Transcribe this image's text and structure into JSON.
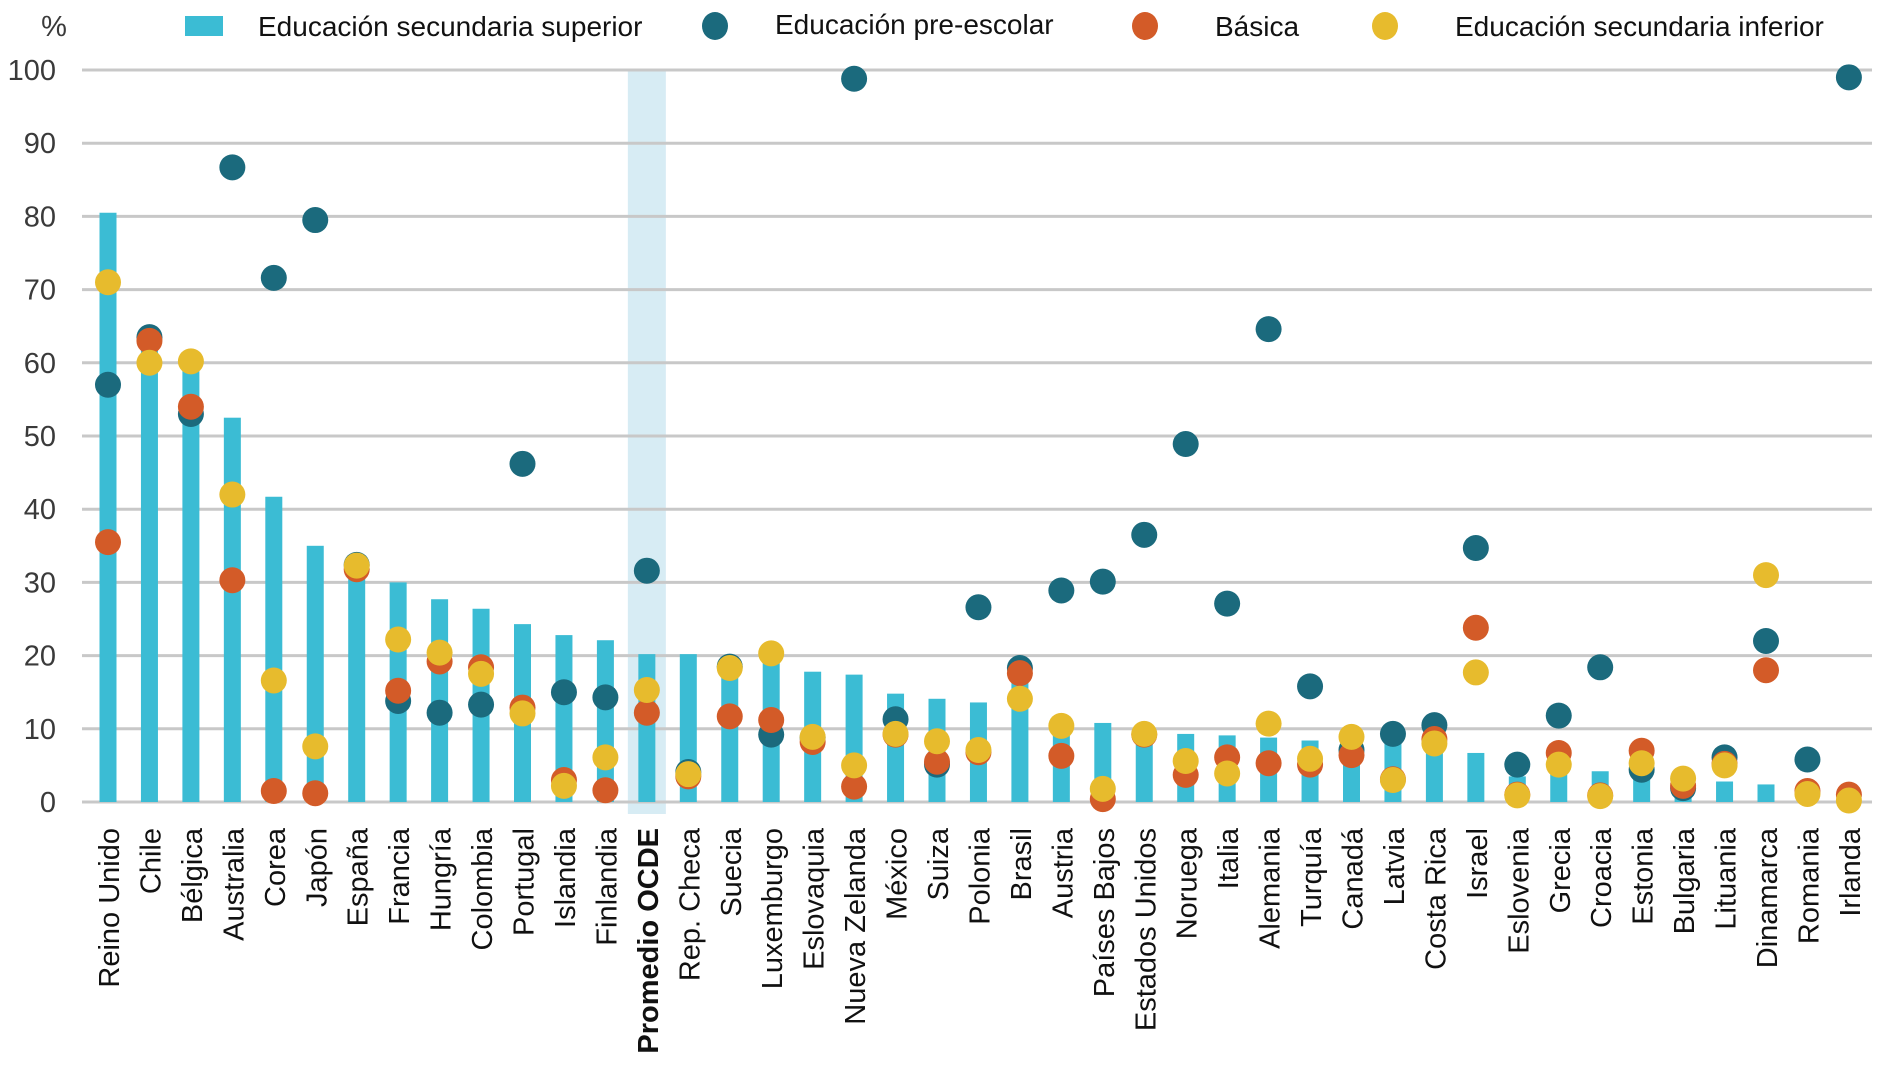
{
  "chart_data": {
    "type": "bar",
    "title": "",
    "xlabel": "",
    "ylabel": "%",
    "ylim": [
      0,
      100
    ],
    "yticks": [
      0,
      10,
      20,
      30,
      40,
      50,
      60,
      70,
      80,
      90,
      100
    ],
    "grid": true,
    "legend_position": "top",
    "highlight_category": "Promedio OCDE",
    "categories": [
      "Reino Unido",
      "Chile",
      "Bélgica",
      "Australia",
      "Corea",
      "Japón",
      "España",
      "Francia",
      "Hungría",
      "Colombia",
      "Portugal",
      "Islandia",
      "Finlandia",
      "Promedio OCDE",
      "Rep. Checa",
      "Suecia",
      "Luxemburgo",
      "Eslovaquia",
      "Nueva Zelanda",
      "México",
      "Suiza",
      "Polonia",
      "Brasil",
      "Austria",
      "Países Bajos",
      "Estados Unidos",
      "Noruega",
      "Italia",
      "Alemania",
      "Turquía",
      "Canadá",
      "Latvia",
      "Costa Rica",
      "Israel",
      "Eslovenia",
      "Grecia",
      "Croacia",
      "Estonia",
      "Bulgaria",
      "Lituania",
      "Dinamarca",
      "Romania",
      "Irlanda"
    ],
    "series": [
      {
        "name": "Educación secundaria superior",
        "kind": "bar",
        "color": "#3bbcd4",
        "values": [
          80.5,
          63.5,
          60.0,
          52.5,
          41.7,
          35.0,
          32.0,
          30.0,
          27.7,
          26.4,
          24.3,
          22.8,
          22.1,
          20.2,
          20.2,
          18.8,
          20.0,
          17.8,
          17.4,
          14.8,
          14.1,
          13.6,
          18.1,
          10.4,
          10.8,
          9.7,
          9.3,
          9.1,
          8.8,
          8.4,
          8.0,
          9.5,
          10.2,
          6.7,
          3.5,
          5.8,
          4.2,
          5.0,
          2.4,
          2.8,
          2.4,
          0,
          0
        ]
      },
      {
        "name": "Educación pre-escolar",
        "kind": "dot",
        "color": "#1b6a7d",
        "values": [
          57.0,
          63.5,
          53.0,
          86.7,
          71.6,
          79.5,
          32.4,
          13.8,
          12.2,
          13.3,
          46.2,
          15.0,
          14.3,
          31.6,
          4.1,
          18.5,
          9.2,
          8.8,
          98.8,
          11.3,
          5.1,
          26.6,
          18.3,
          28.9,
          30.1,
          36.5,
          48.9,
          27.1,
          64.6,
          15.8,
          7.1,
          9.3,
          10.5,
          34.7,
          5.1,
          11.8,
          18.4,
          4.4,
          1.9,
          6.1,
          22.0,
          5.8,
          99.0
        ]
      },
      {
        "name": "Básica",
        "kind": "dot",
        "color": "#d35b28",
        "values": [
          35.5,
          63.0,
          54.0,
          30.3,
          1.5,
          1.2,
          31.8,
          15.2,
          19.2,
          18.4,
          12.9,
          3.0,
          1.6,
          12.2,
          3.5,
          11.7,
          11.2,
          8.2,
          2.1,
          9.2,
          5.5,
          6.8,
          17.6,
          6.3,
          0.4,
          9.2,
          3.7,
          6.1,
          5.3,
          5.1,
          6.4,
          3.1,
          8.6,
          23.8,
          1.0,
          6.7,
          0.9,
          7.0,
          2.2,
          5.2,
          18.0,
          1.5,
          1.0
        ]
      },
      {
        "name": "Educación secundaria inferior",
        "kind": "dot",
        "color": "#e7bb2d",
        "values": [
          71.0,
          60.0,
          60.2,
          42.0,
          16.6,
          7.6,
          32.3,
          22.2,
          20.4,
          17.5,
          12.1,
          2.2,
          6.1,
          15.3,
          3.8,
          18.3,
          20.3,
          8.9,
          5.0,
          9.3,
          8.3,
          7.1,
          14.1,
          10.4,
          1.8,
          9.3,
          5.6,
          3.9,
          10.7,
          5.9,
          8.9,
          3.0,
          8.0,
          17.7,
          0.9,
          5.1,
          0.8,
          5.3,
          3.2,
          5.0,
          31.0,
          1.1,
          0.2
        ]
      }
    ]
  },
  "colors": {
    "grid": "#c8c8c8",
    "highlight": "#d7ecf4",
    "tick_text": "#3a3a3a",
    "label_text": "#111111"
  }
}
